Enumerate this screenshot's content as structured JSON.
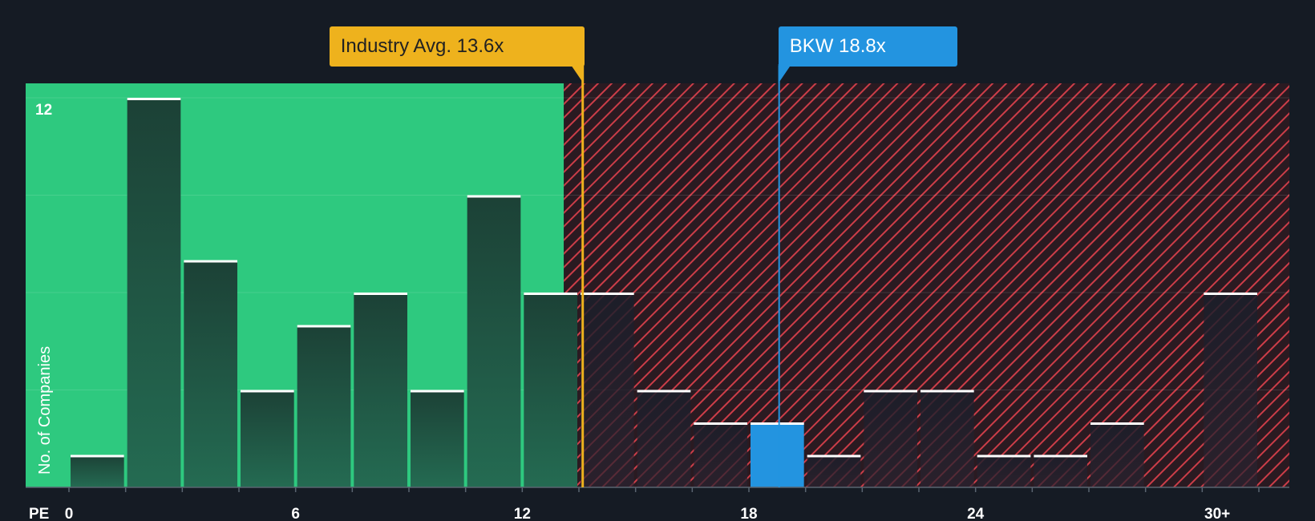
{
  "chart_data": {
    "type": "bar",
    "title": "",
    "xlabel": "PE",
    "ylabel": "No. of Companies",
    "x_ticks": [
      "0",
      "6",
      "12",
      "18",
      "24",
      "30+"
    ],
    "y_ticks": [
      "12"
    ],
    "ylim": [
      0,
      12
    ],
    "bins": [
      {
        "from": 0.0,
        "to": 1.5,
        "value": 1
      },
      {
        "from": 1.5,
        "to": 3.0,
        "value": 12
      },
      {
        "from": 3.0,
        "to": 4.5,
        "value": 7
      },
      {
        "from": 4.5,
        "to": 6.0,
        "value": 3
      },
      {
        "from": 6.0,
        "to": 7.5,
        "value": 5
      },
      {
        "from": 7.5,
        "to": 9.0,
        "value": 6
      },
      {
        "from": 9.0,
        "to": 10.5,
        "value": 3
      },
      {
        "from": 10.5,
        "to": 12.0,
        "value": 9
      },
      {
        "from": 12.0,
        "to": 13.5,
        "value": 6
      },
      {
        "from": 13.5,
        "to": 15.0,
        "value": 6
      },
      {
        "from": 15.0,
        "to": 16.5,
        "value": 3
      },
      {
        "from": 16.5,
        "to": 18.0,
        "value": 2
      },
      {
        "from": 18.0,
        "to": 19.5,
        "value": 2,
        "highlight": true
      },
      {
        "from": 19.5,
        "to": 21.0,
        "value": 1
      },
      {
        "from": 21.0,
        "to": 22.5,
        "value": 3
      },
      {
        "from": 22.5,
        "to": 24.0,
        "value": 3
      },
      {
        "from": 24.0,
        "to": 25.5,
        "value": 1
      },
      {
        "from": 25.5,
        "to": 27.0,
        "value": 1
      },
      {
        "from": 27.0,
        "to": 28.5,
        "value": 2
      },
      {
        "from": 28.5,
        "to": 30.0,
        "value": 0
      },
      {
        "from": 30.0,
        "to": 31.5,
        "value": 6
      }
    ],
    "industry_avg": {
      "label": "Industry Avg. 13.6x",
      "value": 13.6
    },
    "company": {
      "label": "BKW 18.8x",
      "value": 18.8
    },
    "fair_zone_max": 13.1
  },
  "colors": {
    "background": "#151b24",
    "good_zone": "#2ec97f",
    "bad_zone": "#3a1a22",
    "hatch": "#d8404b",
    "bar": "#1d4a3d",
    "highlight_bar": "#2394e0",
    "industry": "#eeb21d",
    "company": "#2394e0"
  }
}
